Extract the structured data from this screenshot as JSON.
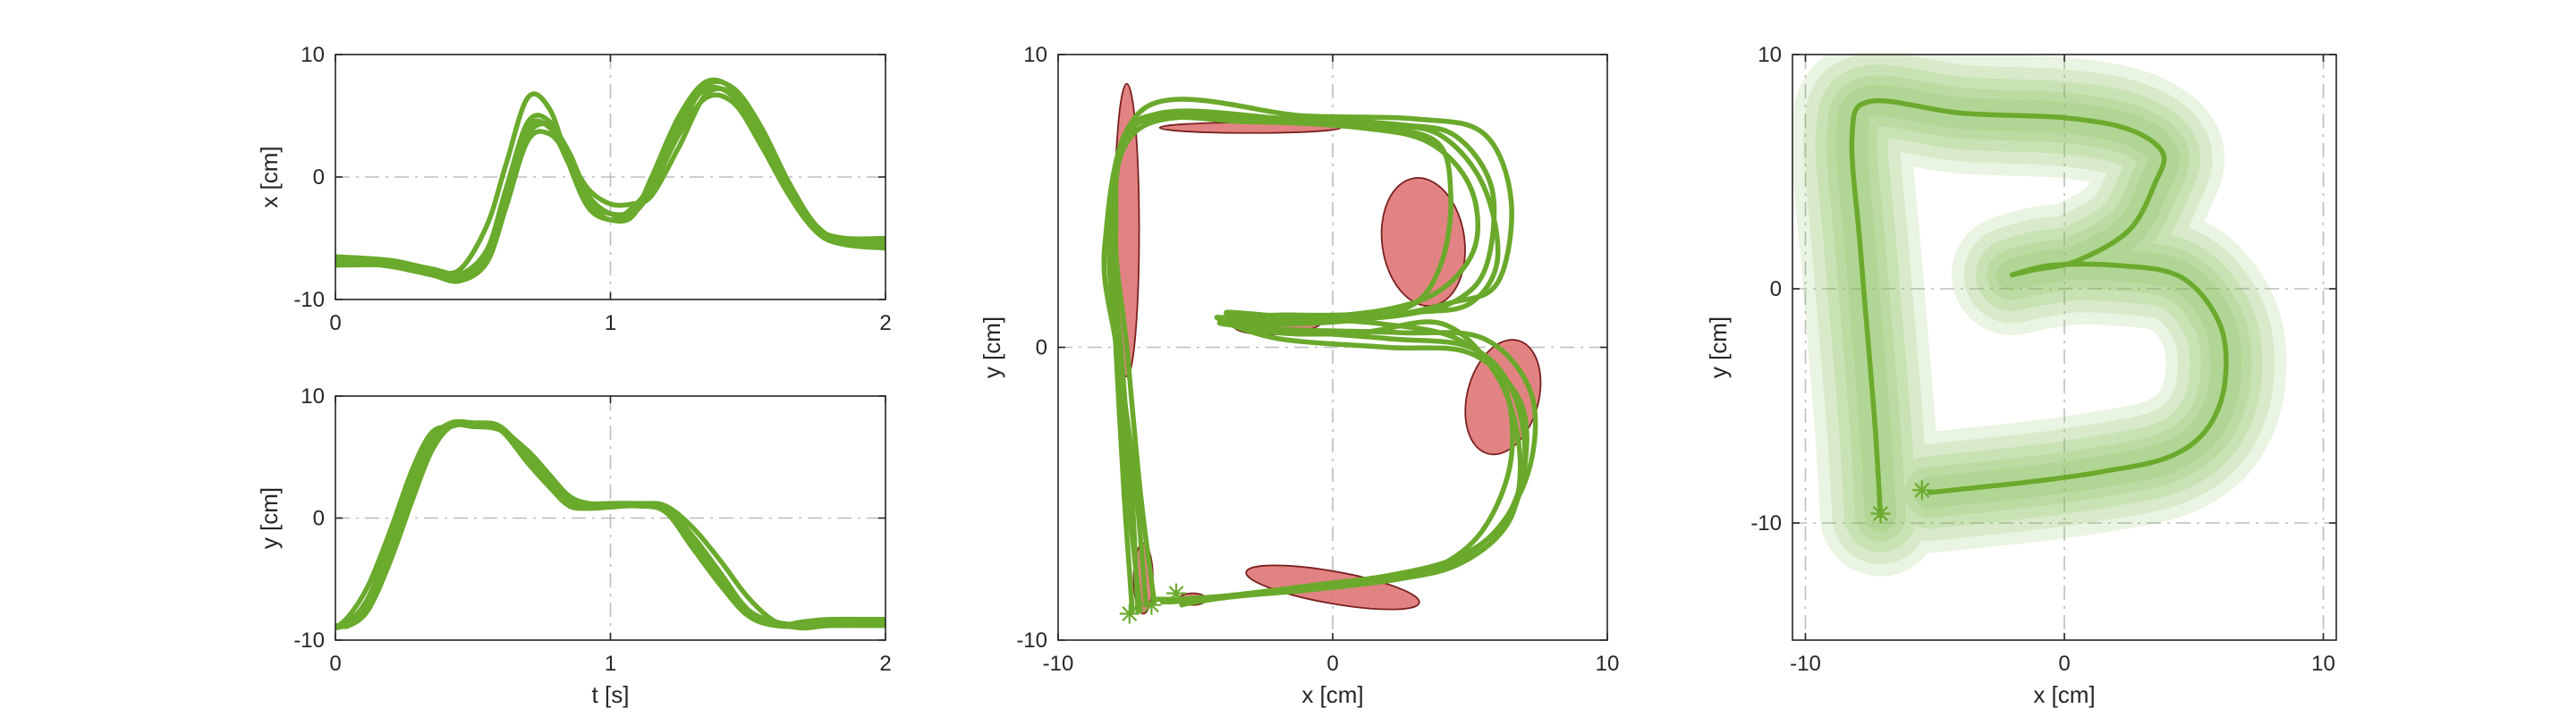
{
  "chart_data": [
    {
      "id": "p1",
      "type": "line",
      "ylabel": "x [cm]",
      "xlabel": "",
      "xlim": [
        0,
        2
      ],
      "ylim": [
        -10,
        10
      ],
      "xticks": [
        0,
        1,
        2
      ],
      "yticks": [
        -10,
        0,
        10
      ],
      "xticklabels": [
        "0",
        "1",
        "2"
      ],
      "yticklabels": [
        "-10",
        "0",
        "10"
      ],
      "grid": true,
      "series": [
        {
          "x": [
            0,
            0.2,
            0.35,
            0.45,
            0.55,
            0.62,
            0.7,
            0.78,
            0.85,
            0.92,
            1.0,
            1.08,
            1.15,
            1.25,
            1.35,
            1.45,
            1.55,
            1.65,
            1.75,
            1.85,
            2.0
          ],
          "y": [
            -7,
            -7.2,
            -7.8,
            -8,
            -6,
            -1.5,
            3.5,
            4.2,
            2,
            -1.5,
            -3,
            -3,
            -1,
            3.5,
            6.5,
            6,
            2.5,
            -1.5,
            -4.2,
            -5,
            -5
          ]
        },
        {
          "x": [
            0,
            0.2,
            0.35,
            0.45,
            0.55,
            0.62,
            0.7,
            0.78,
            0.85,
            0.92,
            1.0,
            1.08,
            1.15,
            1.25,
            1.35,
            1.45,
            1.55,
            1.65,
            1.75,
            1.85,
            2.0
          ],
          "y": [
            -6.5,
            -6.8,
            -7.5,
            -7.6,
            -4,
            1,
            6.5,
            5.5,
            1,
            -2.5,
            -3.5,
            -3.2,
            0,
            5,
            7.8,
            7,
            3,
            -1.5,
            -4.5,
            -5.5,
            -5.5
          ]
        },
        {
          "x": [
            0,
            0.2,
            0.35,
            0.45,
            0.55,
            0.62,
            0.7,
            0.78,
            0.85,
            0.92,
            1.0,
            1.08,
            1.15,
            1.25,
            1.35,
            1.45,
            1.55,
            1.65,
            1.75,
            1.85,
            2.0
          ],
          "y": [
            -7,
            -7,
            -7.5,
            -8.2,
            -6,
            -1,
            4.5,
            4.5,
            1.5,
            -2,
            -3.5,
            -2.5,
            -0.5,
            4,
            7.5,
            7.2,
            4,
            -0.5,
            -4,
            -5.2,
            -5.2
          ]
        },
        {
          "x": [
            0,
            0.2,
            0.35,
            0.45,
            0.55,
            0.62,
            0.7,
            0.78,
            0.85,
            0.92,
            1.0,
            1.08,
            1.15,
            1.25,
            1.35,
            1.45,
            1.55,
            1.65,
            1.75,
            1.85,
            2.0
          ],
          "y": [
            -6.8,
            -7.3,
            -8,
            -8.5,
            -7,
            -2.5,
            3,
            3.5,
            1.5,
            -1,
            -2.2,
            -2.2,
            -1.5,
            2.5,
            6.8,
            6.7,
            3.5,
            -1,
            -4.5,
            -5.5,
            -5.8
          ]
        },
        {
          "x": [
            0,
            0.2,
            0.35,
            0.45,
            0.55,
            0.62,
            0.7,
            0.78,
            0.85,
            0.92,
            1.0,
            1.08,
            1.15,
            1.25,
            1.35,
            1.45,
            1.55,
            1.65,
            1.75,
            1.85,
            2.0
          ],
          "y": [
            -7.2,
            -7.2,
            -7.8,
            -8.2,
            -6.5,
            -2,
            4,
            4,
            1,
            -2,
            -3,
            -2.8,
            -1,
            4.5,
            7.2,
            6.5,
            3,
            -1,
            -4.2,
            -5.2,
            -5.5
          ]
        }
      ]
    },
    {
      "id": "p2",
      "type": "line",
      "ylabel": "y [cm]",
      "xlabel": "t [s]",
      "xlim": [
        0,
        2
      ],
      "ylim": [
        -10,
        10
      ],
      "xticks": [
        0,
        1,
        2
      ],
      "yticks": [
        -10,
        0,
        10
      ],
      "xticklabels": [
        "0",
        "1",
        "2"
      ],
      "yticklabels": [
        "-10",
        "0",
        "10"
      ],
      "grid": true,
      "series": [
        {
          "x": [
            0,
            0.05,
            0.12,
            0.2,
            0.28,
            0.35,
            0.42,
            0.5,
            0.6,
            0.7,
            0.78,
            0.85,
            0.92,
            1.0,
            1.1,
            1.2,
            1.3,
            1.4,
            1.5,
            1.6,
            1.7,
            1.8,
            2.0
          ],
          "y": [
            -9,
            -8.5,
            -6.5,
            -2,
            3,
            6.5,
            7.8,
            7.8,
            7.5,
            5,
            3,
            1.5,
            1,
            1,
            1,
            0.8,
            -1.5,
            -4.5,
            -7.5,
            -8.5,
            -8.8,
            -8.8,
            -8.8
          ]
        },
        {
          "x": [
            0,
            0.05,
            0.12,
            0.2,
            0.28,
            0.35,
            0.42,
            0.5,
            0.6,
            0.7,
            0.78,
            0.85,
            0.92,
            1.0,
            1.1,
            1.2,
            1.3,
            1.4,
            1.5,
            1.6,
            1.7,
            1.8,
            2.0
          ],
          "y": [
            -9,
            -8,
            -5.5,
            -1,
            4,
            7,
            7.5,
            7.8,
            7.2,
            4.5,
            2.5,
            1,
            0.8,
            0.9,
            1,
            0.5,
            -2.5,
            -5.5,
            -8,
            -8.8,
            -8.5,
            -8.3,
            -8.3
          ]
        },
        {
          "x": [
            0,
            0.05,
            0.12,
            0.2,
            0.28,
            0.35,
            0.42,
            0.5,
            0.6,
            0.7,
            0.78,
            0.85,
            0.92,
            1.0,
            1.1,
            1.2,
            1.3,
            1.4,
            1.5,
            1.6,
            1.7,
            1.8,
            2.0
          ],
          "y": [
            -8.8,
            -8.8,
            -7.5,
            -3.5,
            1.5,
            5.5,
            7.5,
            7.5,
            7.2,
            5.5,
            3.5,
            1.8,
            1.2,
            1.2,
            1.2,
            1,
            -0.8,
            -3.5,
            -6.5,
            -8.5,
            -9,
            -8.8,
            -8.8
          ]
        },
        {
          "x": [
            0,
            0.05,
            0.12,
            0.2,
            0.28,
            0.35,
            0.42,
            0.5,
            0.6,
            0.7,
            0.78,
            0.85,
            0.92,
            1.0,
            1.1,
            1.2,
            1.3,
            1.4,
            1.5,
            1.6,
            1.7,
            1.8,
            2.0
          ],
          "y": [
            -9,
            -8.6,
            -6.8,
            -2.5,
            2.5,
            6,
            7.6,
            7.6,
            7.4,
            5.2,
            2.8,
            1.2,
            0.9,
            1,
            1.1,
            0.7,
            -2,
            -5,
            -7.8,
            -8.8,
            -8.8,
            -8.6,
            -8.6
          ]
        }
      ]
    },
    {
      "id": "p3",
      "type": "line",
      "ylabel": "y [cm]",
      "xlabel": "x [cm]",
      "xlim": [
        -10,
        10
      ],
      "ylim": [
        -10,
        10
      ],
      "xticks": [
        -10,
        0,
        10
      ],
      "yticks": [
        -10,
        0,
        10
      ],
      "xticklabels": [
        "-10",
        "0",
        "10"
      ],
      "yticklabels": [
        "-10",
        "0",
        "10"
      ],
      "grid": true,
      "series": [
        {
          "x": [
            -7.3,
            -7.6,
            -7.9,
            -8.1,
            -7,
            -2,
            2,
            4,
            5.5,
            6,
            5,
            3,
            0,
            -2,
            -4,
            -2,
            1,
            4,
            6,
            6.8,
            6.5,
            5,
            3,
            0,
            -2,
            -4,
            -5.6
          ],
          "y": [
            -9,
            -5,
            0,
            4,
            7.5,
            7.8,
            7.6,
            7.2,
            5.5,
            3,
            1.5,
            1.2,
            1.1,
            1.1,
            1,
            0.5,
            0.5,
            0.8,
            -1,
            -3.5,
            -5.8,
            -7.2,
            -7.8,
            -8.2,
            -8.3,
            -8.5,
            -8.6
          ]
        },
        {
          "x": [
            -6.8,
            -7.2,
            -7.8,
            -8,
            -7.2,
            -3,
            1,
            3.5,
            5,
            5.2,
            4,
            2,
            -1,
            -3,
            -4.2,
            -2,
            2,
            5,
            6.8,
            7,
            6.2,
            4.5,
            2,
            -0.5,
            -3,
            -4.8,
            -6.5
          ],
          "y": [
            -8.8,
            -4.5,
            0,
            4.5,
            7.6,
            7.7,
            7.5,
            7,
            5.5,
            3.5,
            2,
            1.3,
            1,
            0.9,
            1,
            0.3,
            0,
            -0.2,
            -1.8,
            -4,
            -6,
            -7.2,
            -7.8,
            -8.1,
            -8.4,
            -8.6,
            -8.6
          ]
        },
        {
          "x": [
            -7,
            -7.4,
            -7.8,
            -8.3,
            -6.8,
            -1,
            3,
            5.5,
            6.5,
            6,
            4.2,
            1.5,
            -1.5,
            -3.5,
            -4,
            -1.5,
            2.5,
            5.5,
            7.2,
            7.2,
            6,
            4,
            1.5,
            -1,
            -3.5,
            -5,
            -5.5
          ],
          "y": [
            -9,
            -5.5,
            -0.5,
            3.5,
            8.2,
            7.9,
            7.8,
            7.3,
            5,
            2.2,
            1.5,
            1,
            0.8,
            0.9,
            0.8,
            0.6,
            0.5,
            0.3,
            -1.5,
            -4,
            -6.2,
            -7.5,
            -8,
            -8.3,
            -8.5,
            -8.7,
            -8.8
          ]
        },
        {
          "x": [
            -6.5,
            -7,
            -7.5,
            -7.9,
            -7.2,
            -2.5,
            1.5,
            3.8,
            4.3,
            4,
            3,
            1,
            -1,
            -3,
            -3.8,
            -1.2,
            1.8,
            4.5,
            6.2,
            6.5,
            5.5,
            3.8,
            1.5,
            -1,
            -3,
            -4.5,
            -6
          ],
          "y": [
            -8.7,
            -5,
            0,
            4,
            7.7,
            7.7,
            7.5,
            7,
            5.2,
            3,
            1.5,
            1.1,
            1,
            1,
            1.2,
            1,
            0.8,
            0.3,
            -1.2,
            -3.8,
            -6.2,
            -7.5,
            -8,
            -8.2,
            -8.4,
            -8.6,
            -8.7
          ]
        },
        {
          "x": [
            -7.1,
            -7.3,
            -7.7,
            -8,
            -6.9,
            -1.5,
            2.5,
            4.5,
            5.8,
            5.6,
            4.5,
            2.5,
            -0.5,
            -2.5,
            -4,
            -1.8,
            2,
            5,
            6.5,
            7,
            6.3,
            4.6,
            2.5,
            0,
            -2.5,
            -4.5,
            -6.2
          ],
          "y": [
            -9,
            -5.2,
            -0.2,
            4.2,
            7.8,
            7.8,
            7.6,
            7.2,
            5.4,
            2.8,
            1.6,
            1.1,
            0.9,
            0.9,
            1,
            0.6,
            0.3,
            0,
            -1.4,
            -3.8,
            -6.1,
            -7.4,
            -7.9,
            -8.2,
            -8.4,
            -8.6,
            -8.7
          ]
        }
      ],
      "ellipses": [
        {
          "cx": -7.5,
          "cy": 4,
          "rx": 0.45,
          "ry": 5,
          "angle": 0
        },
        {
          "cx": -3,
          "cy": 7.5,
          "rx": 3.3,
          "ry": 0.18,
          "angle": 0
        },
        {
          "cx": 3.3,
          "cy": 3.6,
          "rx": 1.5,
          "ry": 2.2,
          "angle": -8
        },
        {
          "cx": -2,
          "cy": 0.8,
          "rx": 1.6,
          "ry": 0.35,
          "angle": -3
        },
        {
          "cx": 6.2,
          "cy": -1.7,
          "rx": 1.3,
          "ry": 2.0,
          "angle": 15
        },
        {
          "cx": -6.9,
          "cy": -7.9,
          "rx": 0.35,
          "ry": 1.2,
          "angle": 0
        },
        {
          "cx": -5.1,
          "cy": -8.6,
          "rx": 0.5,
          "ry": 0.2,
          "angle": 0
        },
        {
          "cx": 0,
          "cy": -8.2,
          "rx": 3.2,
          "ry": 0.55,
          "angle": 10
        }
      ],
      "starts": [
        [
          -7.4,
          -9.1
        ],
        [
          -6.6,
          -8.8
        ],
        [
          -5.7,
          -8.4
        ]
      ]
    },
    {
      "id": "p4",
      "type": "area",
      "ylabel": "y [cm]",
      "xlabel": "x [cm]",
      "xlim": [
        -10.5,
        10.5
      ],
      "ylim": [
        -15,
        10
      ],
      "xticks": [
        -10,
        0,
        10
      ],
      "yticks": [
        -10,
        0,
        10
      ],
      "xticklabels": [
        "-10",
        "0",
        "10"
      ],
      "yticklabels": [
        "-10",
        "0",
        "10"
      ],
      "grid": true,
      "series": [
        {
          "x": [
            -7.1,
            -7.3,
            -7.6,
            -7.9,
            -8.2,
            -7.5,
            -4,
            0,
            2.5,
            3.8,
            3.5,
            2.5,
            0.5,
            -1.2,
            -2,
            -0.5,
            2,
            4.5,
            6,
            6.2,
            5.5,
            4,
            1.5,
            -1,
            -3.5,
            -5.2
          ],
          "y": [
            -9.7,
            -6,
            -2,
            2,
            6.5,
            8,
            7.5,
            7.3,
            6.8,
            5.8,
            4.5,
            2.5,
            1.2,
            0.8,
            0.6,
            1,
            1,
            0.5,
            -1.5,
            -4,
            -6,
            -7.2,
            -7.8,
            -8.2,
            -8.5,
            -8.7
          ]
        }
      ],
      "band_width": [
        2.2,
        2.0,
        1.8,
        1.6,
        1.8,
        2.6,
        2.2,
        2.0,
        2.4,
        2.6,
        2.8,
        3.2,
        2.4,
        2.0,
        1.8,
        2.2,
        2.4,
        2.6,
        3.0,
        3.4,
        3.2,
        2.8,
        2.4,
        2.0,
        1.8,
        1.4
      ],
      "starts": [
        [
          -7.1,
          -9.6
        ],
        [
          -5.5,
          -8.6
        ]
      ]
    }
  ]
}
